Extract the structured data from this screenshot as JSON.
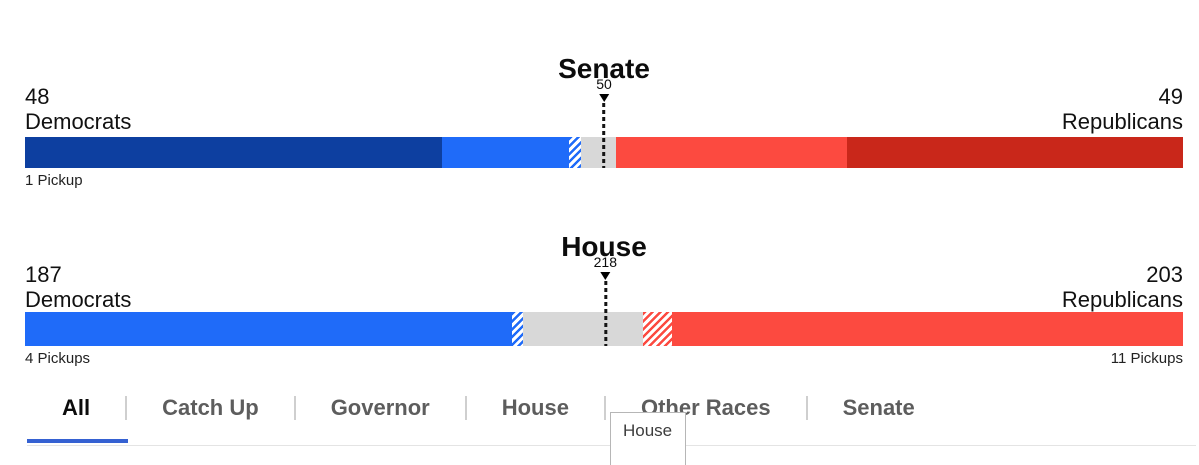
{
  "colors": {
    "dem_holdover": "#0d3fa0",
    "dem_won": "#1f6bf9",
    "rep_won": "#fc4a40",
    "rep_holdover": "#c9271a",
    "undecided": "#d8d8d8",
    "tab_underline": "#3561d2"
  },
  "chart_data": [
    {
      "type": "bar",
      "title": "Senate",
      "total_seats": 100,
      "marker": {
        "label": "50",
        "seats": 50
      },
      "left": {
        "value": "48",
        "label": "Democrats",
        "pickups": "1 Pickup"
      },
      "right": {
        "value": "49",
        "label": "Republicans"
      },
      "segments": [
        {
          "name": "dem-holdover",
          "seats": 36,
          "color": "#0d3fa0",
          "pattern": "solid"
        },
        {
          "name": "dem-won",
          "seats": 11,
          "color": "#1f6bf9",
          "pattern": "solid"
        },
        {
          "name": "dem-pickup",
          "seats": 1,
          "color": "#1f6bf9",
          "pattern": "hatch"
        },
        {
          "name": "undecided",
          "seats": 3,
          "color": "#d8d8d8",
          "pattern": "solid"
        },
        {
          "name": "rep-won",
          "seats": 20,
          "color": "#fc4a40",
          "pattern": "solid"
        },
        {
          "name": "rep-holdover",
          "seats": 29,
          "color": "#c9271a",
          "pattern": "solid"
        }
      ]
    },
    {
      "type": "bar",
      "title": "House",
      "total_seats": 435,
      "marker": {
        "label": "218",
        "seats": 218
      },
      "left": {
        "value": "187",
        "label": "Democrats",
        "pickups": "4 Pickups"
      },
      "right": {
        "value": "203",
        "label": "Republicans",
        "pickups": "11 Pickups"
      },
      "segments": [
        {
          "name": "dem-won",
          "seats": 183,
          "color": "#1f6bf9",
          "pattern": "solid"
        },
        {
          "name": "dem-pickup",
          "seats": 4,
          "color": "#1f6bf9",
          "pattern": "hatch"
        },
        {
          "name": "undecided",
          "seats": 45,
          "color": "#d8d8d8",
          "pattern": "solid"
        },
        {
          "name": "rep-pickup",
          "seats": 11,
          "color": "#fc4a40",
          "pattern": "hatch"
        },
        {
          "name": "rep-won",
          "seats": 192,
          "color": "#fc4a40",
          "pattern": "solid"
        }
      ]
    }
  ],
  "tabs": {
    "items": [
      {
        "label": "All",
        "active": true
      },
      {
        "label": "Catch Up",
        "active": false
      },
      {
        "label": "Governor",
        "active": false
      },
      {
        "label": "House",
        "active": false
      },
      {
        "label": "Other Races",
        "active": false
      },
      {
        "label": "Senate",
        "active": false
      }
    ]
  },
  "tooltip": {
    "label": "House"
  }
}
